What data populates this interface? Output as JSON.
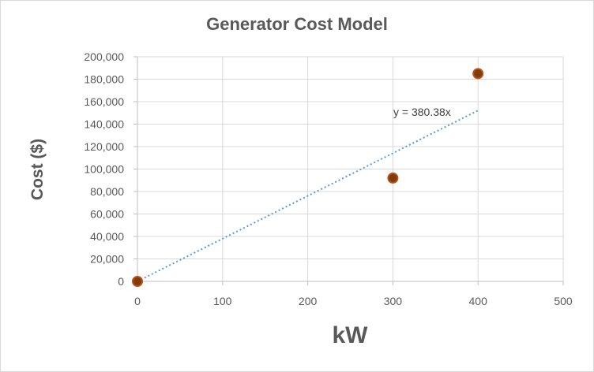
{
  "chart_data": {
    "type": "scatter",
    "title": "Generator Cost Model",
    "xlabel": "kW",
    "ylabel": "Cost ($)",
    "xlim": [
      0,
      500
    ],
    "ylim": [
      0,
      200000
    ],
    "x_ticks": [
      "0",
      "100",
      "200",
      "300",
      "400",
      "500"
    ],
    "y_ticks": [
      "0",
      "20,000",
      "40,000",
      "60,000",
      "80,000",
      "100,000",
      "120,000",
      "140,000",
      "160,000",
      "180,000",
      "200,000"
    ],
    "grid": true,
    "points": [
      {
        "x": 0,
        "y": 0
      },
      {
        "x": 300,
        "y": 92000
      },
      {
        "x": 400,
        "y": 185000
      }
    ],
    "trendline": {
      "type": "linear-through-origin",
      "slope": 380.38,
      "label": "y = 380.38x",
      "x_range": [
        0,
        400
      ]
    },
    "colors": {
      "marker_fill": "#7f3b08",
      "marker_edge": "#b5521b",
      "trendline": "#5b9bd5",
      "grid": "#d9d9d9",
      "text": "#595959"
    }
  }
}
